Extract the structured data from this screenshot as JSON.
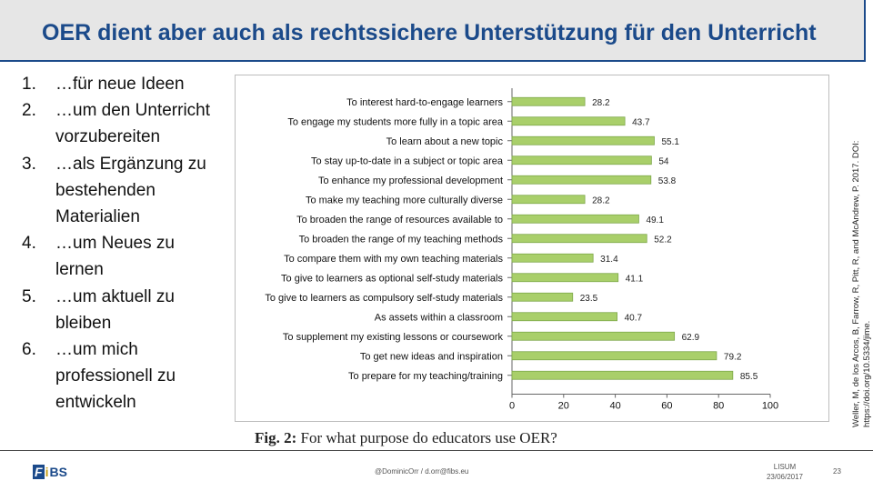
{
  "slide": {
    "title": "OER dient aber auch als rechtssichere Unterstützung für den Unterricht",
    "list": [
      {
        "num": "1.",
        "text": "…für neue Ideen"
      },
      {
        "num": "2.",
        "text": "…um den Unterricht vorzubereiten"
      },
      {
        "num": "3.",
        "text": "…als Ergänzung zu bestehenden Materialien"
      },
      {
        "num": "4.",
        "text": "…um Neues zu lernen"
      },
      {
        "num": "5.",
        "text": "…um aktuell zu bleiben"
      },
      {
        "num": "6.",
        "text": "…um mich professionell zu entwickeln"
      }
    ],
    "caption_label": "Fig. 2:",
    "caption_text": "For what purpose do educators use OER?",
    "citation": "Weller, M, de los Arcos, B, Farrow, R, Pitt, R, and McAndrew, P. 2017. DOI: https://doi.org/10.5334/jime.",
    "footer": {
      "logo_f": "F",
      "logo_i": "i",
      "logo_b": "BS",
      "handle": "@DominicOrr / d.orr@fibs.eu",
      "event": "LISUM",
      "date": "23/06/2017",
      "page": "23"
    }
  },
  "colors": {
    "title": "#1b4a8a",
    "bar_fill": "#a9cf6a",
    "bar_stroke": "#7ea84a"
  },
  "chart_data": {
    "type": "bar",
    "orientation": "horizontal",
    "title": "For what purpose do educators use OER?",
    "categories": [
      "To interest hard-to-engage learners",
      "To engage my students more fully in a topic area",
      "To learn about a new topic",
      "To stay up-to-date in a subject or topic area",
      "To enhance my professional development",
      "To make my teaching more culturally diverse",
      "To broaden the range of resources available to",
      "To broaden the range of my teaching methods",
      "To compare them with my own teaching materials",
      "To give to learners as optional self-study materials",
      "To give to learners as compulsory self-study materials",
      "As assets within a classroom",
      "To supplement my existing lessons or coursework",
      "To get new ideas and inspiration",
      "To prepare for my teaching/training"
    ],
    "values": [
      28.2,
      43.7,
      55.1,
      54,
      53.8,
      28.2,
      49.1,
      52.2,
      31.4,
      41.1,
      23.5,
      40.7,
      62.9,
      79.2,
      85.5
    ],
    "value_labels": [
      "28.2",
      "43.7",
      "55.1",
      "54",
      "53.8",
      "28.2",
      "49.1",
      "52.2",
      "31.4",
      "41.1",
      "23.5",
      "40.7",
      "62.9",
      "79.2",
      "85.5"
    ],
    "xticks": [
      "0",
      "20",
      "40",
      "60",
      "80",
      "100"
    ],
    "xlim": [
      0,
      100
    ],
    "grid": false
  }
}
